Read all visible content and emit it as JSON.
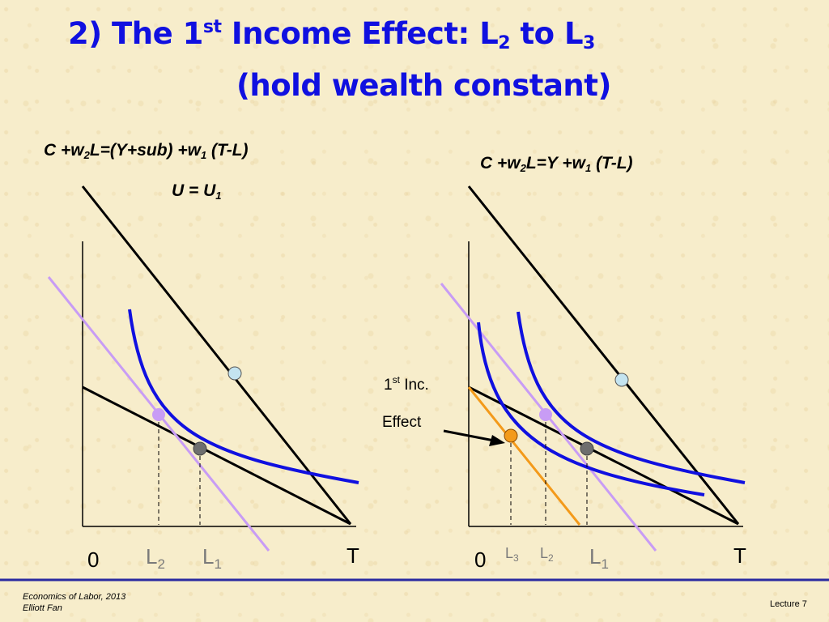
{
  "title": {
    "line1_a": "2) The 1",
    "line1_sup": "st",
    "line1_b": " Income Effect: L",
    "line1_sub1": "2",
    "line1_c": " to L",
    "line1_sub2": "3",
    "line2": "(hold wealth constant)"
  },
  "left_panel": {
    "budget_eq": {
      "a": "C +w",
      "s1": "2",
      "b": "L=(Y+sub) +w",
      "s2": "1",
      "c": " (T-L)"
    },
    "utility_eq": {
      "a": "U = U",
      "s1": "1"
    },
    "axis": {
      "origin": "0",
      "end": "T"
    },
    "l2": {
      "base": "L",
      "sub": "2"
    },
    "l1": {
      "base": "L",
      "sub": "1"
    }
  },
  "right_panel": {
    "budget_eq": {
      "a": "C +w",
      "s1": "2",
      "b": "L=Y +w",
      "s2": "1",
      "c": " (T-L)"
    },
    "annotation": {
      "line1": "1",
      "sup": "st",
      "line1_b": " Inc.",
      "line2": "Effect"
    },
    "axis": {
      "origin": "0",
      "end": "T"
    },
    "l3": {
      "base": "L",
      "sub": "3"
    },
    "l2": {
      "base": "L",
      "sub": "2"
    },
    "l1": {
      "base": "L",
      "sub": "1"
    }
  },
  "footer": {
    "course": "Economics of Labor, 2013",
    "author": "Elliott Fan",
    "lecture": "Lecture 7"
  },
  "colors": {
    "title": "#1010e0",
    "indifference": "#1010e0",
    "tangent_line": "#c89cf5",
    "new_budget": "#f39a1a",
    "point_light_blue": "#c4e4f0",
    "point_gray": "#6e6e6e",
    "point_lavender": "#c89cf5",
    "point_orange": "#f39a1a",
    "divider": "#2a2aa0"
  }
}
